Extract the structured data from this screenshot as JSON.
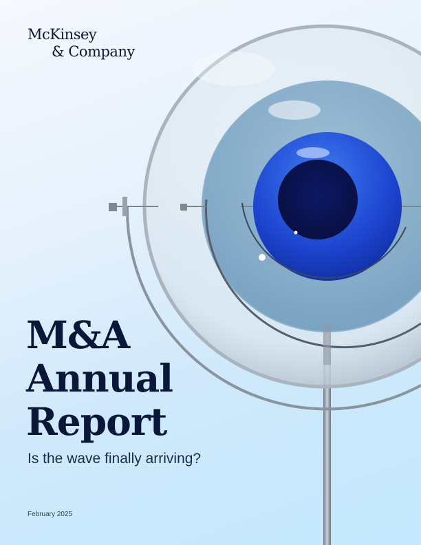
{
  "brand": {
    "line1": "McKinsey",
    "line2": "& Company"
  },
  "title": {
    "line1": "M&A",
    "line2": "Annual",
    "line3": "Report"
  },
  "subtitle": "Is the wave finally arriving?",
  "date": "February 2025",
  "colors": {
    "title": "#0b1738",
    "sphere_blue": "#1f4fd8",
    "core": "#0a1450",
    "background": "#c3e8fd"
  }
}
